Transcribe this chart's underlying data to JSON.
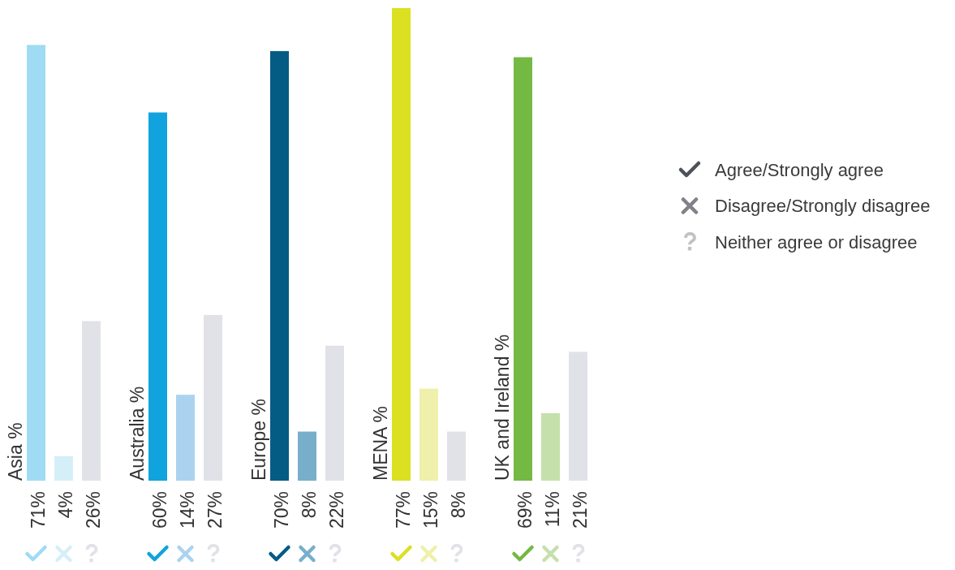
{
  "chart_data": [
    {
      "type": "bar",
      "title": "Asia %",
      "categories": [
        null,
        null,
        null
      ],
      "values": [
        71,
        4,
        26
      ],
      "colors": [
        "#9fdcf4",
        "#d5eff9",
        "#e1e2e7"
      ],
      "value_labels": [
        "71%",
        "4%",
        "26%"
      ]
    },
    {
      "type": "bar",
      "title": "Australia %",
      "categories": [
        null,
        null,
        null
      ],
      "values": [
        60,
        14,
        27
      ],
      "colors": [
        "#10a3de",
        "#abd3ef",
        "#e1e2e7"
      ],
      "value_labels": [
        "60%",
        "14%",
        "27%"
      ]
    },
    {
      "type": "bar",
      "title": "Europe %",
      "categories": [
        null,
        null,
        null
      ],
      "values": [
        70,
        8,
        22
      ],
      "colors": [
        "#045c85",
        "#77afcb",
        "#e1e2e7"
      ],
      "value_labels": [
        "70%",
        "8%",
        "22%"
      ]
    },
    {
      "type": "bar",
      "title": "MENA %",
      "categories": [
        null,
        null,
        null
      ],
      "values": [
        77,
        15,
        8
      ],
      "colors": [
        "#dbe021",
        "#eef0ab",
        "#e1e2e7"
      ],
      "value_labels": [
        "77%",
        "15%",
        "8%"
      ]
    },
    {
      "type": "bar",
      "title": "UK and Ireland %",
      "categories": [
        null,
        null,
        null
      ],
      "values": [
        69,
        11,
        21
      ],
      "colors": [
        "#74b943",
        "#c6e0ac",
        "#e1e2e7"
      ],
      "value_labels": [
        "69%",
        "11%",
        "21%"
      ]
    },
    {
      "type": "other",
      "annotations": [
        "Agree/Strongly agree",
        "Disagree/Strongly disagree",
        "Neither agree or disagree"
      ],
      "colors": [
        "#4d5259",
        "#7f8287",
        "#c0c2c6"
      ]
    }
  ]
}
